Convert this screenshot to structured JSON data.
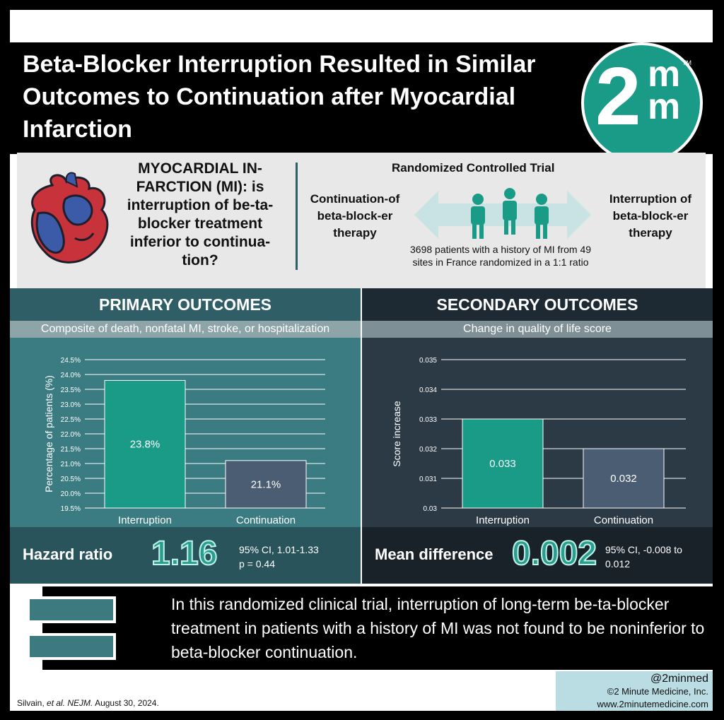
{
  "header": {
    "title": "Beta-Blocker Interruption Resulted in Similar Outcomes to Continuation after Myocardial Infarction",
    "logo_main": "2",
    "logo_sup": "m",
    "logo_sub": "m",
    "logo_tm": "TM"
  },
  "question": {
    "text": "MYOCARDIAL IN-FARCTION (MI): is interruption of be-ta-blocker treatment inferior to continua-tion?"
  },
  "trial": {
    "title": "Randomized Controlled Trial",
    "arm_left": "Continuation-of beta-block-er therapy",
    "arm_right": "Interruption of beta-block-er therapy",
    "description": "3698 patients with a history of MI from 49 sites in France randomized in a 1:1 ratio"
  },
  "primary": {
    "heading": "PRIMARY OUTCOMES",
    "subheading": "Composite of death, nonfatal MI, stroke, or hospitalization",
    "result_label": "Hazard ratio",
    "result_value": "1.16",
    "ci_line1": "95% CI, 1.01-1.33",
    "ci_line2": "p = 0.44"
  },
  "secondary": {
    "heading": "SECONDARY OUTCOMES",
    "subheading": "Change in quality of life score",
    "result_label": "Mean difference",
    "result_value": "0.002",
    "ci_line1": "95% CI, -0.008 to",
    "ci_line2": "0.012"
  },
  "chart_data": [
    {
      "type": "bar",
      "categories": [
        "Interruption",
        "Continuation"
      ],
      "values": [
        23.8,
        21.1
      ],
      "value_labels": [
        "23.8%",
        "21.1%"
      ],
      "ylabel": "Percentage of patients (%)",
      "ylim": [
        19.5,
        24.5
      ],
      "yticks": [
        "19.5%",
        "20.0%",
        "20.5%",
        "21.0%",
        "21.5%",
        "22.0%",
        "22.5%",
        "23.0%",
        "23.5%",
        "24.0%",
        "24.5%"
      ],
      "grid": true,
      "colors": [
        "#1a9b87",
        "#4a5d73"
      ]
    },
    {
      "type": "bar",
      "categories": [
        "Interruption",
        "Continuation"
      ],
      "values": [
        0.033,
        0.032
      ],
      "value_labels": [
        "0.033",
        "0.032"
      ],
      "ylabel": "Score increase",
      "ylim": [
        0.03,
        0.035
      ],
      "yticks": [
        "0.03",
        "0.031",
        "0.032",
        "0.033",
        "0.034",
        "0.035"
      ],
      "grid": true,
      "colors": [
        "#1a9b87",
        "#4a5d73"
      ]
    }
  ],
  "conclusion": {
    "text": "In this randomized clinical trial, interruption of long-term be-ta-blocker treatment in patients with a history of MI was not found to be noninferior to beta-blocker continuation."
  },
  "footer": {
    "citation_author": "Silvain,",
    "citation_etal": "et al. NEJM.",
    "citation_date": "August 30, 2024.",
    "handle": "@2minmed",
    "copyright": "©2 Minute Medicine, Inc.",
    "website": "www.2minutemedicine.com"
  }
}
